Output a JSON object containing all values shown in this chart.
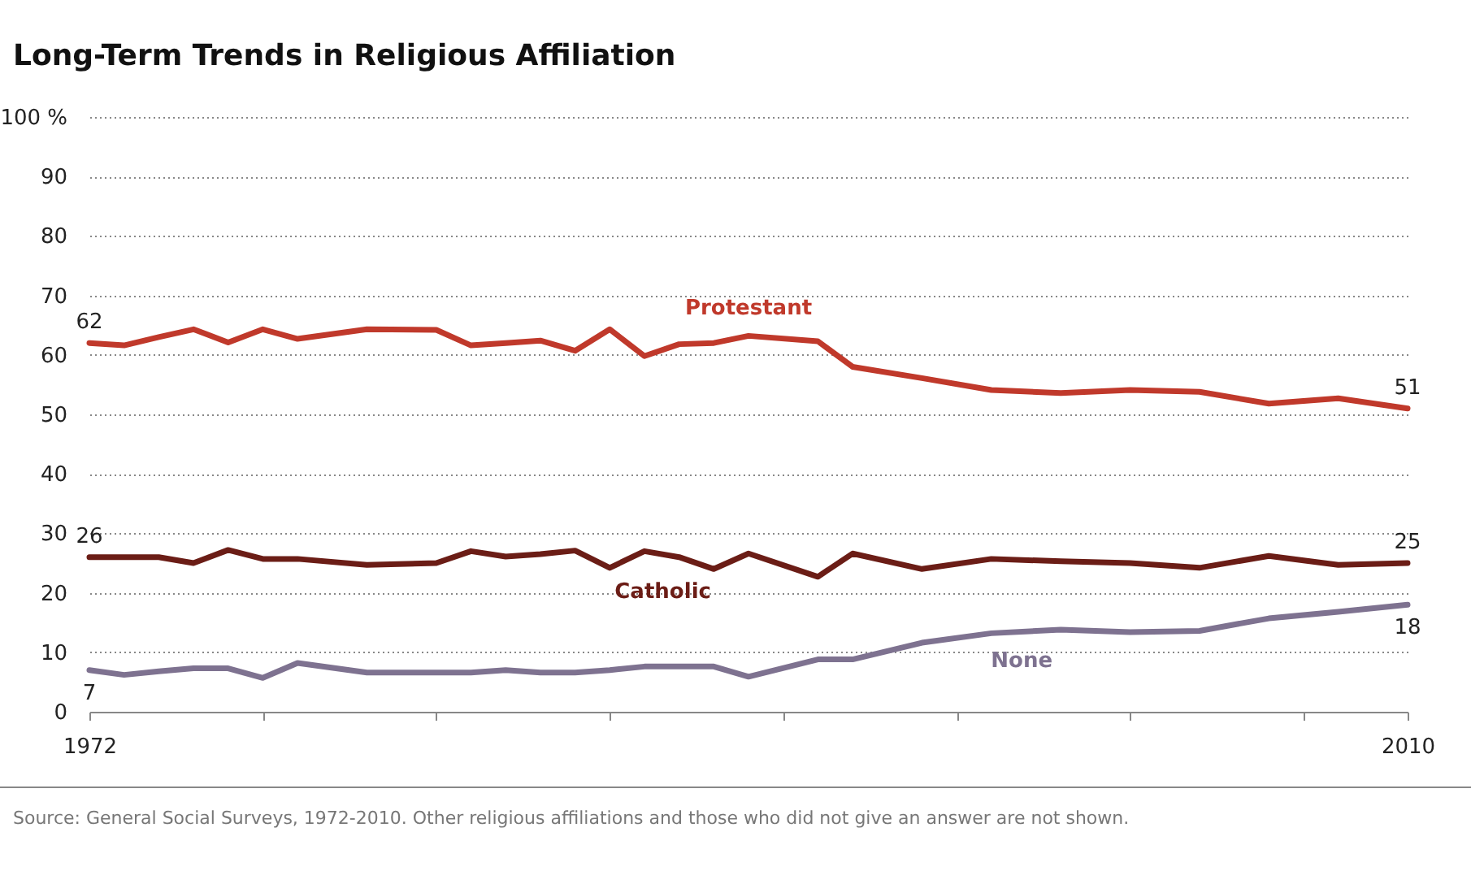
{
  "chart_data": {
    "type": "line",
    "title": "Long-Term Trends in Religious Affiliation",
    "x": [
      1972,
      1973,
      1974,
      1975,
      1976,
      1977,
      1978,
      1980,
      1982,
      1983,
      1984,
      1985,
      1986,
      1987,
      1988,
      1989,
      1990,
      1991,
      1993,
      1994,
      1996,
      1998,
      2000,
      2002,
      2004,
      2006,
      2008,
      2010
    ],
    "xlim": [
      1972,
      2010
    ],
    "xticks": [
      {
        "value": 1972,
        "label": "1972"
      },
      {
        "value": 1977,
        "label": null
      },
      {
        "value": 1982,
        "label": null
      },
      {
        "value": 1987,
        "label": null
      },
      {
        "value": 1992,
        "label": null
      },
      {
        "value": 1997,
        "label": null
      },
      {
        "value": 2002,
        "label": null
      },
      {
        "value": 2007,
        "label": null
      },
      {
        "value": 2010,
        "label": "2010"
      }
    ],
    "ylim": [
      0,
      100
    ],
    "yticks": [
      0,
      10,
      20,
      30,
      40,
      50,
      60,
      70,
      80,
      90,
      {
        "value": 100,
        "label": "100 %"
      }
    ],
    "grid": "y",
    "series": [
      {
        "name": "Protestant",
        "color": "#c0392b",
        "values": [
          62,
          61.6,
          63,
          64.3,
          62.1,
          64.3,
          62.7,
          64.3,
          64.2,
          61.6,
          62.0,
          62.4,
          60.7,
          64.3,
          59.8,
          61.8,
          62.0,
          63.2,
          62.3,
          58.0,
          56.1,
          54.1,
          53.6,
          54.1,
          53.8,
          51.8,
          52.7,
          51
        ],
        "value_labels": [
          "62",
          null,
          null,
          null,
          null,
          null,
          null,
          null,
          null,
          null,
          null,
          null,
          null,
          null,
          null,
          null,
          null,
          null,
          null,
          null,
          null,
          null,
          null,
          null,
          null,
          null,
          null,
          "51"
        ]
      },
      {
        "name": "Catholic",
        "color": "#6b1d16",
        "values": [
          26,
          26.0,
          26.0,
          25.0,
          27.2,
          25.7,
          25.7,
          24.7,
          25.0,
          27.0,
          26.1,
          26.5,
          27.1,
          24.2,
          27.0,
          26.0,
          24.0,
          26.6,
          22.7,
          26.6,
          24.0,
          25.7,
          25.3,
          25.0,
          24.2,
          26.2,
          24.7,
          25
        ],
        "value_labels": [
          "26",
          null,
          null,
          null,
          null,
          null,
          null,
          null,
          null,
          null,
          null,
          null,
          null,
          null,
          null,
          null,
          null,
          null,
          null,
          null,
          null,
          null,
          null,
          null,
          null,
          null,
          null,
          "25"
        ]
      },
      {
        "name": "None",
        "color": "#7e7290",
        "values": [
          7,
          6.2,
          6.8,
          7.3,
          7.3,
          5.7,
          8.2,
          6.6,
          6.6,
          6.6,
          7.0,
          6.6,
          6.6,
          7.0,
          7.6,
          7.6,
          7.6,
          5.9,
          8.8,
          8.8,
          11.6,
          13.2,
          13.8,
          13.4,
          13.6,
          15.7,
          16.8,
          18
        ],
        "value_labels": [
          "7",
          null,
          null,
          null,
          null,
          null,
          null,
          null,
          null,
          null,
          null,
          null,
          null,
          null,
          null,
          null,
          null,
          null,
          null,
          null,
          null,
          null,
          null,
          null,
          null,
          null,
          null,
          "18"
        ]
      }
    ],
    "annotations": [
      "Source: General Social Surveys, 1972-2010. Other religious affiliations and those who did not give an answer are not shown."
    ]
  }
}
